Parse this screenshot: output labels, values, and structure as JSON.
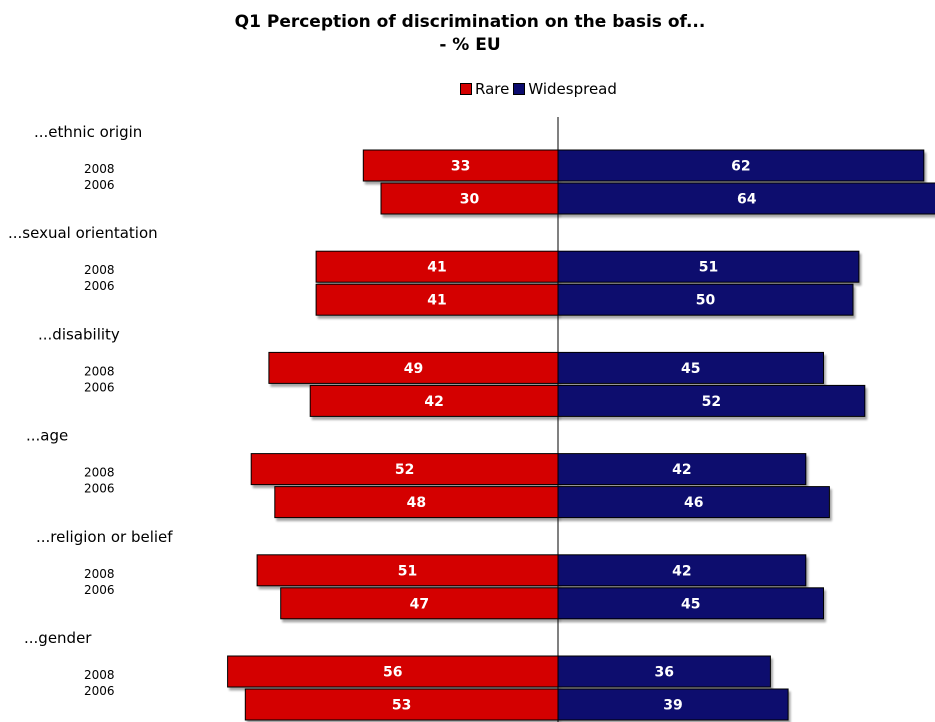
{
  "title_line1": "Q1 Perception of discrimination on the basis of...",
  "title_line2": "- % EU",
  "legend": {
    "rare": "Rare",
    "widespread": "Widespread"
  },
  "colors": {
    "rare": "#d40000",
    "widespread": "#0b0b6e",
    "axis": "#000000"
  },
  "chart_data": {
    "type": "bar",
    "orientation": "horizontal-diverging",
    "title": "Q1 Perception of discrimination on the basis of... - % EU",
    "legend_position": "top",
    "grid": false,
    "xlim": [
      -60,
      70
    ],
    "categories": [
      {
        "label": "...ethnic origin",
        "years": [
          {
            "year": "2008",
            "rare": 33,
            "widespread": 62
          },
          {
            "year": "2006",
            "rare": 30,
            "widespread": 64
          }
        ]
      },
      {
        "label": "...sexual orientation",
        "years": [
          {
            "year": "2008",
            "rare": 41,
            "widespread": 51
          },
          {
            "year": "2006",
            "rare": 41,
            "widespread": 50
          }
        ]
      },
      {
        "label": "...disability",
        "years": [
          {
            "year": "2008",
            "rare": 49,
            "widespread": 45
          },
          {
            "year": "2006",
            "rare": 42,
            "widespread": 52
          }
        ]
      },
      {
        "label": "...age",
        "years": [
          {
            "year": "2008",
            "rare": 52,
            "widespread": 42
          },
          {
            "year": "2006",
            "rare": 48,
            "widespread": 46
          }
        ]
      },
      {
        "label": "...religion or belief",
        "years": [
          {
            "year": "2008",
            "rare": 51,
            "widespread": 42
          },
          {
            "year": "2006",
            "rare": 47,
            "widespread": 45
          }
        ]
      },
      {
        "label": "...gender",
        "years": [
          {
            "year": "2008",
            "rare": 56,
            "widespread": 36
          },
          {
            "year": "2006",
            "rare": 53,
            "widespread": 39
          }
        ]
      }
    ],
    "series": [
      {
        "name": "Rare",
        "key": "rare"
      },
      {
        "name": "Widespread",
        "key": "widespread"
      }
    ]
  }
}
